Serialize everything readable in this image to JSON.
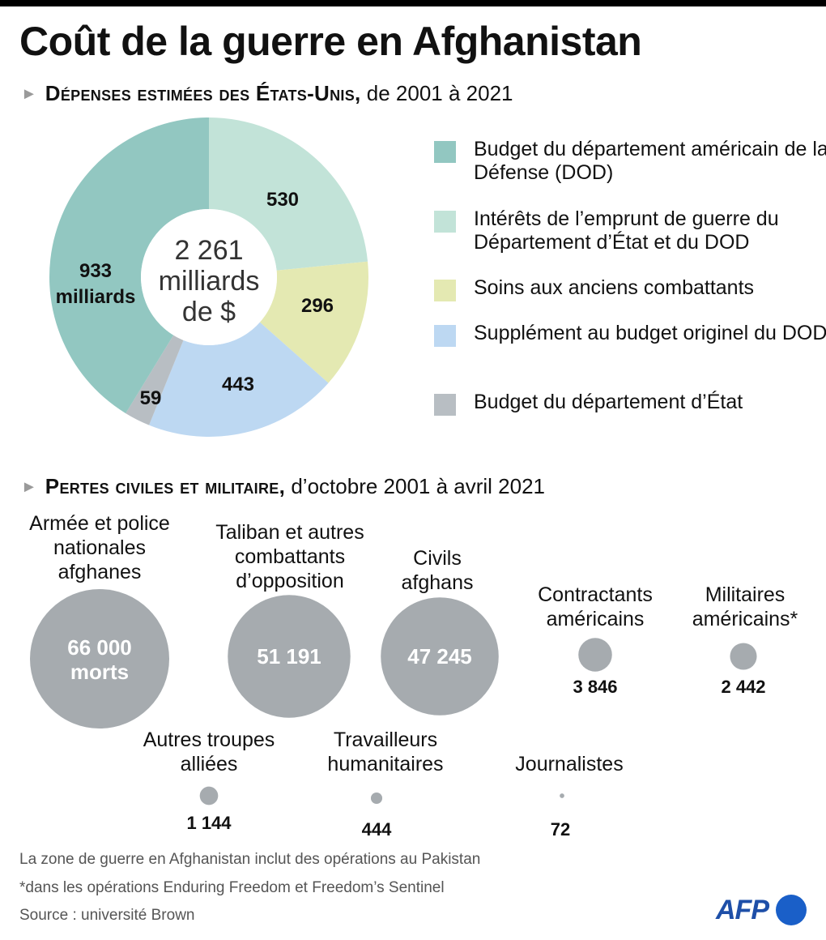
{
  "title": "Coût de la guerre en Afghanistan",
  "section1": {
    "bold": "Dépenses estimées des États-Unis,",
    "rest": " de 2001 à 2021"
  },
  "section2": {
    "bold": "Pertes civiles et militaire,",
    "rest": " d’octobre 2001 à avril 2021"
  },
  "center_label": [
    "2 261",
    "milliards",
    "de $"
  ],
  "chart_data": [
    {
      "type": "pie",
      "subtype": "donut",
      "title": "Dépenses estimées des États-Unis, de 2001 à 2021",
      "total_label": "2 261 milliards de $",
      "categories": [
        "Intérêts de l’emprunt de guerre du Département d’État et du DOD",
        "Soins aux anciens combattants",
        "Supplément au budget originel du DOD",
        "Budget du département d’État",
        "Budget du département américain de la Défense (DOD)"
      ],
      "values": [
        530,
        296,
        443,
        59,
        933
      ],
      "value_labels": [
        "530",
        "296",
        "443",
        "59",
        "933 milliards"
      ],
      "colors": [
        "#c2e3d8",
        "#e4e9b2",
        "#bdd8f2",
        "#b8bec3",
        "#92c7c1"
      ],
      "legend_position": "right"
    },
    {
      "type": "bubble",
      "title": "Pertes civiles et militaire, d’octobre 2001 à avril 2021",
      "categories": [
        "Armée et police nationales afghanes",
        "Taliban et autres combattants d’opposition",
        "Civils afghans",
        "Contractants américains",
        "Militaires américains*",
        "Autres troupes alliées",
        "Travailleurs humanitaires",
        "Journalistes"
      ],
      "values": [
        66000,
        51191,
        47245,
        3846,
        2442,
        1144,
        444,
        72
      ],
      "color": "#a6abaf"
    }
  ],
  "legend": [
    {
      "label": "Budget du département américain de la Défense (DOD)",
      "color": "#92c7c1"
    },
    {
      "label": "Intérêts de l’emprunt de guerre du Département d’État et du DOD",
      "color": "#c2e3d8"
    },
    {
      "label": "Soins aux anciens combattants",
      "color": "#e4e9b2"
    },
    {
      "label": "Supplément au budget originel du DOD",
      "color": "#bdd8f2"
    },
    {
      "label": "Budget du département d’État",
      "color": "#b8bec3"
    }
  ],
  "casualties": [
    {
      "label": "Armée et police\nnationales\nafghanes",
      "value": 66000,
      "text_lines": [
        "66 000",
        "morts"
      ]
    },
    {
      "label": "Taliban et autres\ncombattants\nd’opposition",
      "value": 51191,
      "text_lines": [
        "51 191"
      ]
    },
    {
      "label": "Civils\nafghans",
      "value": 47245,
      "text_lines": [
        "47 245"
      ]
    },
    {
      "label": "Contractants\naméricains",
      "value": 3846,
      "text": "3 846"
    },
    {
      "label": "Militaires\naméricains*",
      "value": 2442,
      "text": "2 442"
    },
    {
      "label": "Autres troupes\nalliées",
      "value": 1144,
      "text": "1 144"
    },
    {
      "label": "Travailleurs\nhumanitaires",
      "value": 444,
      "text": "444"
    },
    {
      "label": "Journalistes",
      "value": 72,
      "text": "72"
    }
  ],
  "footnotes": [
    "La zone de guerre en Afghanistan inclut des opérations au Pakistan",
    "*dans les opérations Enduring Freedom et Freedom’s Sentinel",
    "Source : université Brown"
  ],
  "logo": "AFP",
  "colors": {
    "bubble": "#a6abaf",
    "bubble_text": "#ffffff",
    "logo_blue": "#1a5fc8"
  }
}
